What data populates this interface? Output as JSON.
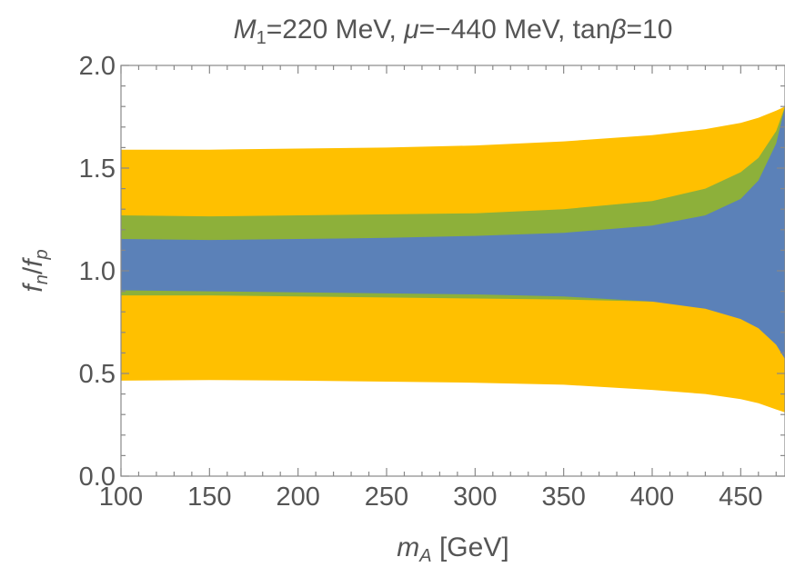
{
  "chart_data": {
    "type": "area",
    "title_parts": {
      "M": "M",
      "one": "1",
      "mid1": "=220 MeV, ",
      "mu": "μ",
      "mid2": "=−440 MeV, tan",
      "beta": "β",
      "end": "=10"
    },
    "xlabel": {
      "m": "m",
      "sub": "A",
      "unit": " [GeV]"
    },
    "ylabel": {
      "f1": "f",
      "s1": "n",
      "slash": "/",
      "f2": "f",
      "s2": "p"
    },
    "xlim": [
      100,
      475
    ],
    "ylim": [
      0.0,
      2.0
    ],
    "x_ticks": [
      "100",
      "150",
      "200",
      "250",
      "300",
      "350",
      "400",
      "450"
    ],
    "y_ticks": [
      "0.0",
      "0.5",
      "1.0",
      "1.5",
      "2.0"
    ],
    "colors": {
      "yellow": "#FFC000",
      "green": "#8DB03A",
      "blue": "#5B81B8"
    },
    "bands": [
      {
        "color": "yellow",
        "x": [
          100,
          150,
          200,
          250,
          300,
          350,
          400,
          430,
          450,
          460,
          470,
          475
        ],
        "upper": [
          1.59,
          1.59,
          1.595,
          1.6,
          1.61,
          1.63,
          1.66,
          1.69,
          1.72,
          1.745,
          1.78,
          1.8
        ],
        "lower": [
          0.465,
          0.468,
          0.465,
          0.46,
          0.455,
          0.445,
          0.42,
          0.4,
          0.375,
          0.355,
          0.325,
          0.31
        ]
      },
      {
        "color": "green",
        "x": [
          100,
          150,
          200,
          250,
          300,
          350,
          400,
          430,
          450,
          460,
          470,
          475
        ],
        "upper": [
          1.27,
          1.265,
          1.27,
          1.275,
          1.28,
          1.3,
          1.34,
          1.4,
          1.48,
          1.55,
          1.68,
          1.8
        ],
        "lower": [
          0.88,
          0.88,
          0.875,
          0.87,
          0.865,
          0.86,
          0.85,
          0.835,
          0.815,
          0.8,
          0.775,
          0.755
        ]
      },
      {
        "color": "blue",
        "x": [
          100,
          150,
          200,
          250,
          300,
          350,
          400,
          430,
          450,
          460,
          470,
          475
        ],
        "upper": [
          1.155,
          1.15,
          1.155,
          1.16,
          1.17,
          1.185,
          1.22,
          1.27,
          1.35,
          1.44,
          1.62,
          1.8
        ],
        "lower": [
          0.905,
          0.9,
          0.895,
          0.89,
          0.885,
          0.875,
          0.85,
          0.815,
          0.765,
          0.72,
          0.64,
          0.57
        ]
      }
    ]
  }
}
